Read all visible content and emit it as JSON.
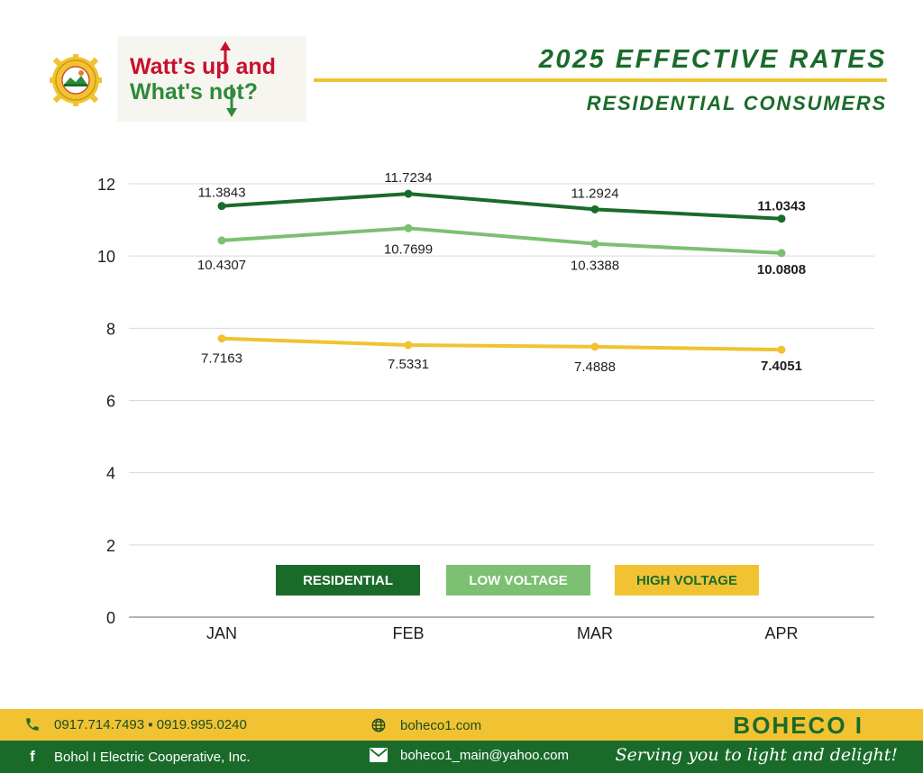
{
  "header": {
    "logo_line1": "Watt's up and",
    "logo_line2": "What's not?",
    "title": "2025 EFFECTIVE RATES",
    "subtitle": "RESIDENTIAL CONSUMERS"
  },
  "colors": {
    "residential": "#1a6b2a",
    "low_voltage": "#7cc071",
    "high_voltage": "#f1c232",
    "grid": "#d9d9d9"
  },
  "chart_data": {
    "type": "line",
    "categories": [
      "JAN",
      "FEB",
      "MAR",
      "APR"
    ],
    "series": [
      {
        "name": "RESIDENTIAL",
        "values": [
          11.3843,
          11.7234,
          11.2924,
          11.0343
        ],
        "labels": [
          "11.3843",
          "11.7234",
          "11.2924",
          "11.0343"
        ]
      },
      {
        "name": "LOW VOLTAGE",
        "values": [
          10.4307,
          10.7699,
          10.3388,
          10.0808
        ],
        "labels": [
          "10.4307",
          "10.7699",
          "10.3388",
          "10.0808"
        ]
      },
      {
        "name": "HIGH VOLTAGE",
        "values": [
          7.7163,
          7.5331,
          7.4888,
          7.4051
        ],
        "labels": [
          "7.7163",
          "7.5331",
          "7.4888",
          "7.4051"
        ]
      }
    ],
    "ylim": [
      0,
      12
    ],
    "yticks": [
      0,
      2,
      4,
      6,
      8,
      10,
      12
    ],
    "grid": true,
    "legend": "bottom"
  },
  "footer": {
    "phones": "0917.714.7493 ▪ 0919.995.0240",
    "website": "boheco1.com",
    "brand": "BOHECO I",
    "facebook": "Bohol I Electric Cooperative, Inc.",
    "email": "boheco1_main@yahoo.com",
    "tagline": "Serving you to light and delight!"
  },
  "icons": {
    "phone": "phone-icon",
    "globe": "globe-icon",
    "facebook": "facebook-icon",
    "mail": "mail-icon"
  }
}
